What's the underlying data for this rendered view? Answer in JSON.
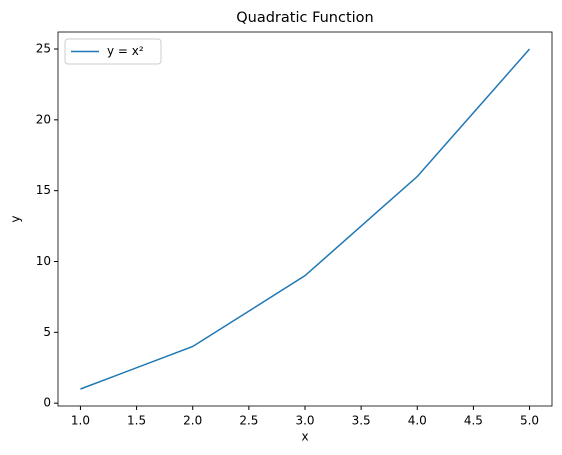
{
  "chart_data": {
    "type": "line",
    "title": "Quadratic Function",
    "x_label": "x",
    "y_label": "y",
    "x": [
      1,
      2,
      3,
      4,
      5
    ],
    "series": [
      {
        "name": "y = x²",
        "color": "#1f77b4",
        "values": [
          1,
          4,
          9,
          16,
          25
        ]
      }
    ],
    "xlim": [
      0.8,
      5.2
    ],
    "xticks": [
      {
        "value": 1,
        "label": "1.0"
      },
      {
        "value": 1.5,
        "label": "1.5"
      },
      {
        "value": 2,
        "label": "2.0"
      },
      {
        "value": 2.5,
        "label": "2.5"
      },
      {
        "value": 3,
        "label": "3.0"
      },
      {
        "value": 3.5,
        "label": "3.5"
      },
      {
        "value": 4,
        "label": "4.0"
      },
      {
        "value": 4.5,
        "label": "4.5"
      },
      {
        "value": 5,
        "label": "5.0"
      }
    ],
    "ylim": [
      -0.2,
      26.2
    ],
    "yticks": [
      0,
      5,
      10,
      15,
      20,
      25
    ],
    "grid": false,
    "legend": "upper-left"
  }
}
